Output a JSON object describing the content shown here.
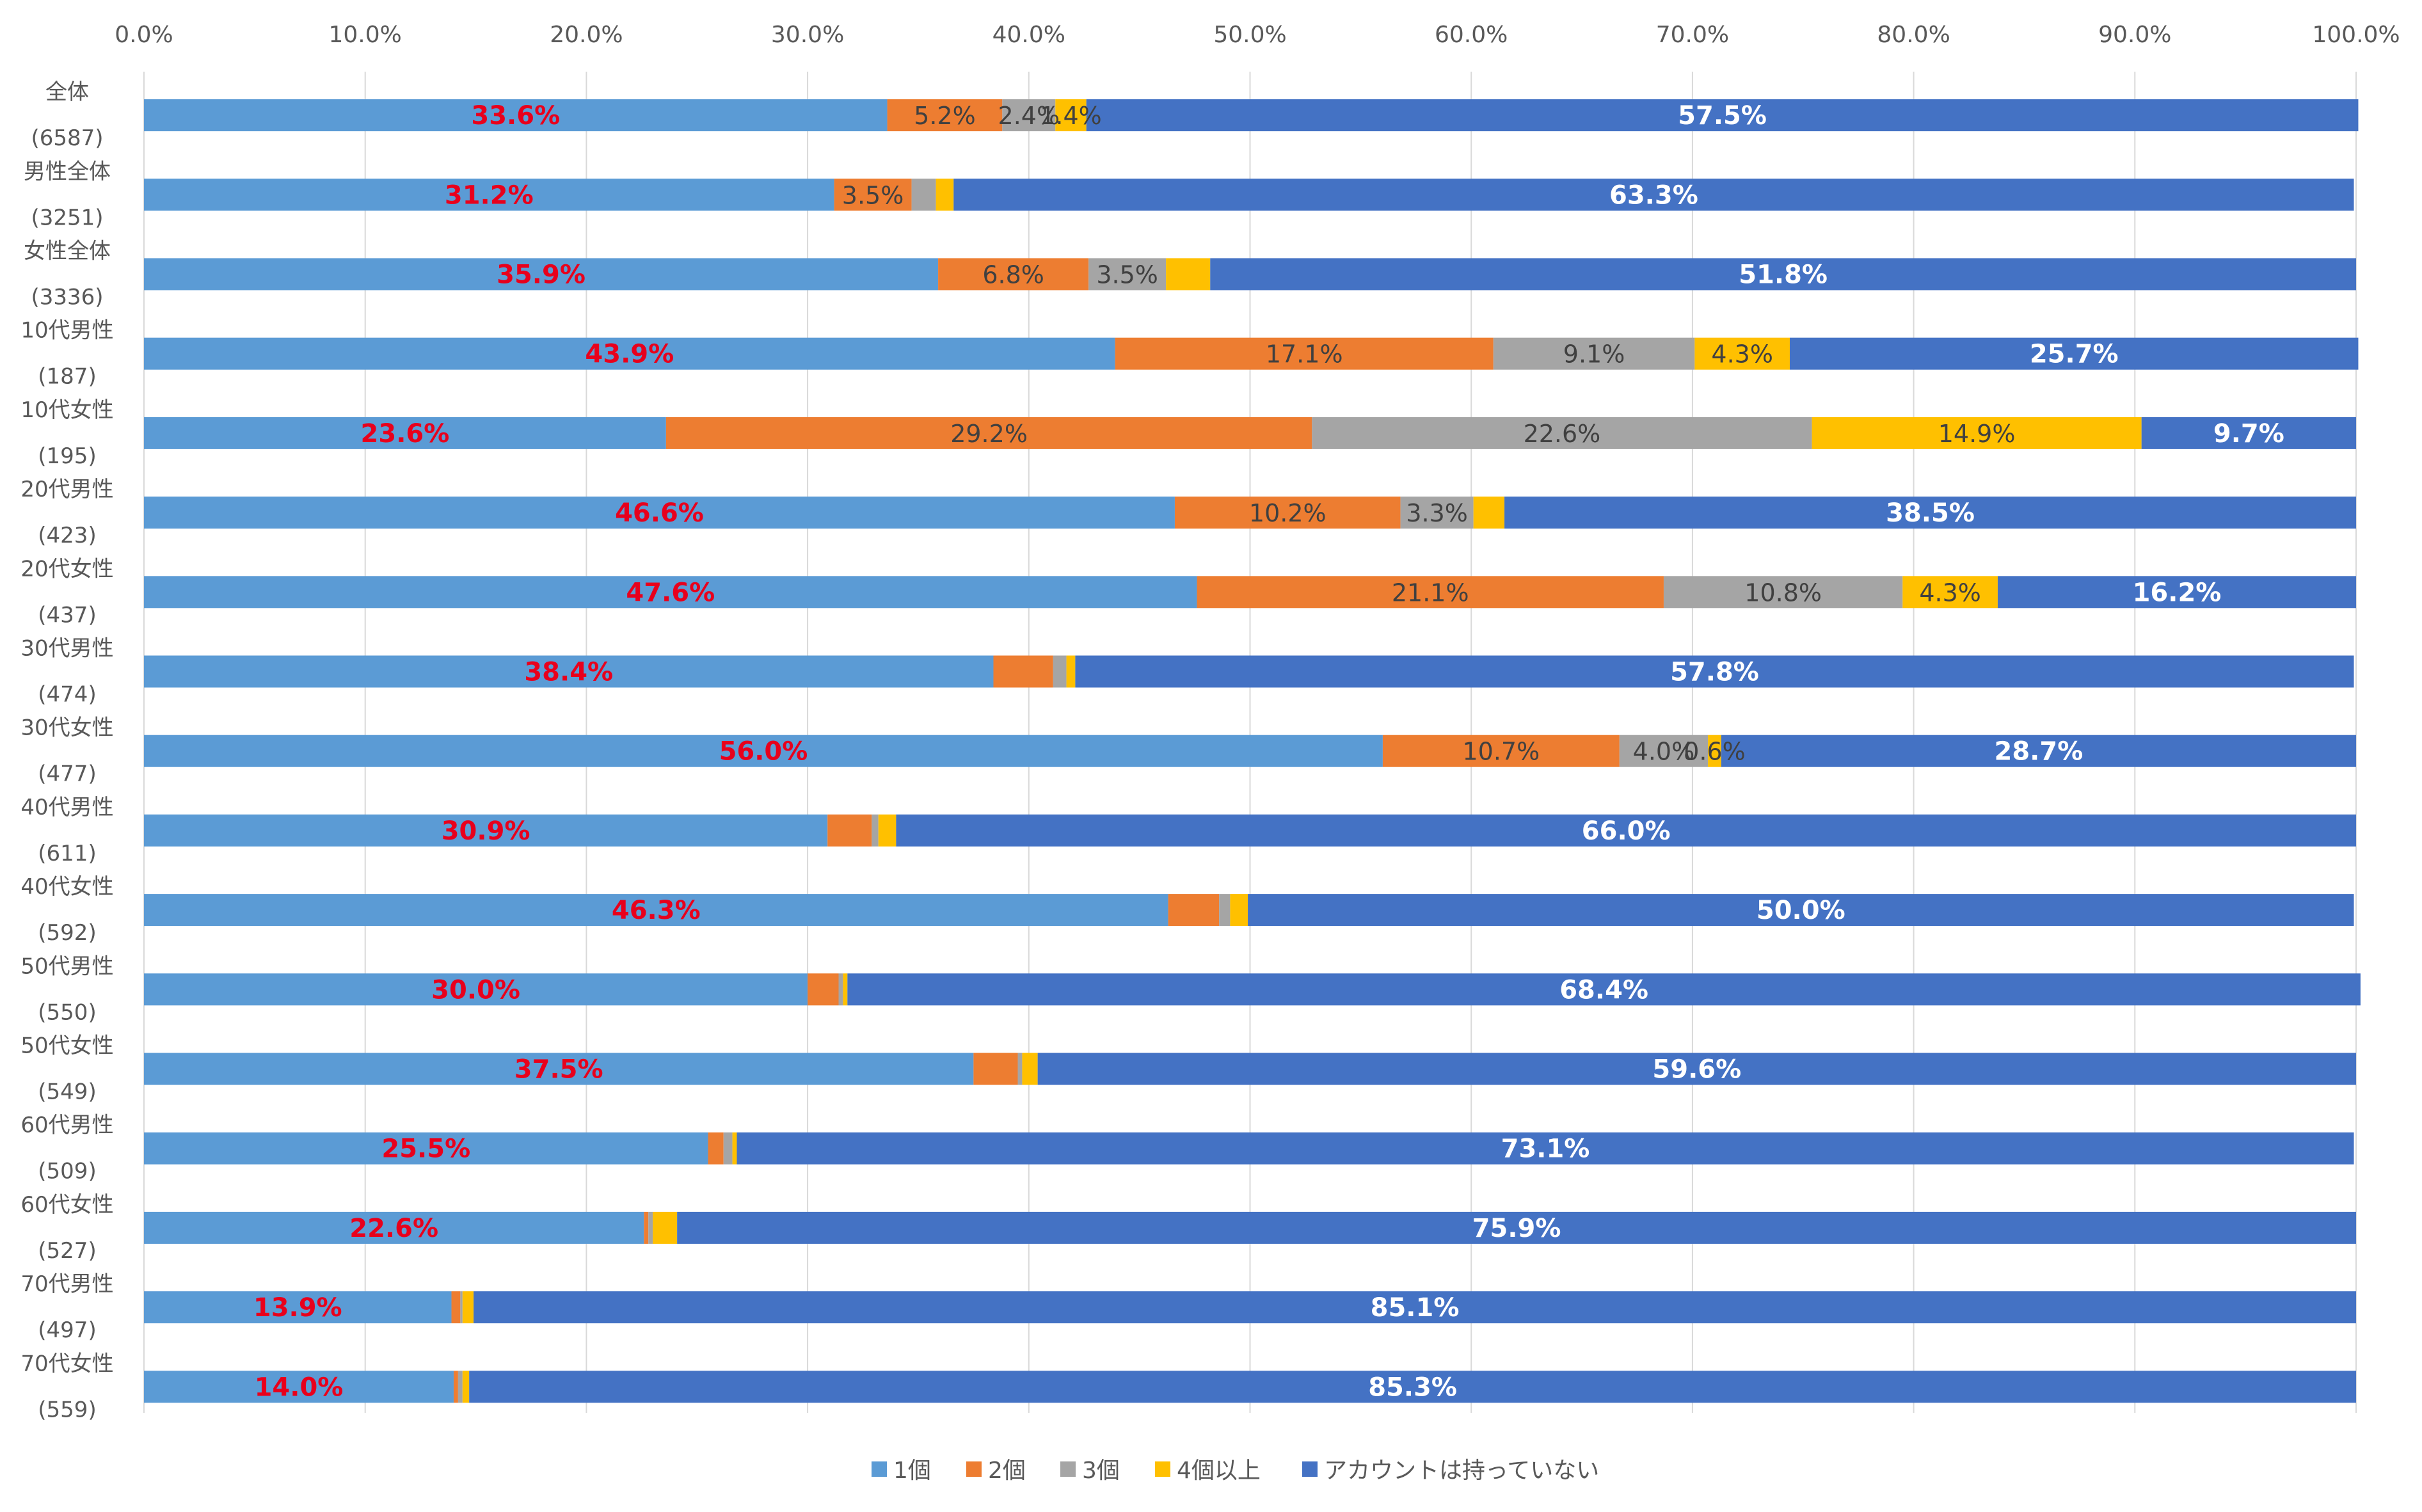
{
  "chart_data": {
    "type": "bar",
    "orientation": "horizontal",
    "stacked": "percent",
    "xlim": [
      0,
      100
    ],
    "x_ticks": [
      "0.0%",
      "10.0%",
      "20.0%",
      "30.0%",
      "40.0%",
      "50.0%",
      "60.0%",
      "70.0%",
      "80.0%",
      "90.0%",
      "100.0%"
    ],
    "grid": true,
    "legend_position": "bottom",
    "categories": [
      [
        "全体",
        "(6587)"
      ],
      [
        "男性全体",
        "(3251)"
      ],
      [
        "女性全体",
        "(3336)"
      ],
      [
        "10代男性",
        "(187)"
      ],
      [
        "10代女性",
        "(195)"
      ],
      [
        "20代男性",
        "(423)"
      ],
      [
        "20代女性",
        "(437)"
      ],
      [
        "30代男性",
        "(474)"
      ],
      [
        "30代女性",
        "(477)"
      ],
      [
        "40代男性",
        "(611)"
      ],
      [
        "40代女性",
        "(592)"
      ],
      [
        "50代男性",
        "(550)"
      ],
      [
        "50代女性",
        "(549)"
      ],
      [
        "60代男性",
        "(509)"
      ],
      [
        "60代女性",
        "(527)"
      ],
      [
        "70代男性",
        "(497)"
      ],
      [
        "70代女性",
        "(559)"
      ]
    ],
    "series": [
      {
        "name": "1個",
        "color": "#5b9bd5",
        "values": [
          33.6,
          31.2,
          35.9,
          43.9,
          23.6,
          46.6,
          47.6,
          38.4,
          56.0,
          30.9,
          46.3,
          30.0,
          37.5,
          25.5,
          22.6,
          13.9,
          14.0
        ],
        "labels": [
          "33.6%",
          "31.2%",
          "35.9%",
          "43.9%",
          "23.6%",
          "46.6%",
          "47.6%",
          "38.4%",
          "56.0%",
          "30.9%",
          "46.3%",
          "30.0%",
          "37.5%",
          "25.5%",
          "22.6%",
          "13.9%",
          "14.0%"
        ]
      },
      {
        "name": "2個",
        "color": "#ed7d31",
        "values": [
          5.2,
          3.5,
          6.8,
          17.1,
          29.2,
          10.2,
          21.1,
          2.7,
          10.7,
          2.0,
          2.3,
          1.4,
          2.0,
          0.7,
          0.2,
          0.4,
          0.2
        ],
        "labels": [
          "5.2%",
          "3.5%",
          "6.8%",
          "17.1%",
          "29.2%",
          "10.2%",
          "21.1%",
          "",
          "10.7%",
          "",
          "",
          "",
          "",
          "",
          "",
          "",
          ""
        ]
      },
      {
        "name": "3個",
        "color": "#a5a5a5",
        "values": [
          2.4,
          1.1,
          3.5,
          9.1,
          22.6,
          3.3,
          10.8,
          0.6,
          4.0,
          0.3,
          0.5,
          0.2,
          0.2,
          0.4,
          0.2,
          0.1,
          0.2
        ],
        "labels": [
          "2.4%",
          "",
          "3.5%",
          "9.1%",
          "22.6%",
          "3.3%",
          "10.8%",
          "",
          "4.0%",
          "",
          "",
          "",
          "",
          "",
          "",
          "",
          ""
        ]
      },
      {
        "name": "4個以上",
        "color": "#ffc000",
        "values": [
          1.4,
          0.8,
          2.0,
          4.3,
          14.9,
          1.4,
          4.3,
          0.4,
          0.6,
          0.8,
          0.8,
          0.2,
          0.7,
          0.2,
          1.1,
          0.5,
          0.3
        ],
        "labels": [
          "1.4%",
          "",
          "",
          "4.3%",
          "14.9%",
          "",
          "4.3%",
          "",
          "0.6%",
          "",
          "",
          "",
          "",
          "",
          "",
          "",
          ""
        ]
      },
      {
        "name": "アカウントは持っていない",
        "color": "#4472c4",
        "values": [
          57.5,
          63.3,
          51.8,
          25.7,
          9.7,
          38.5,
          16.2,
          57.8,
          28.7,
          66.0,
          50.0,
          68.4,
          59.6,
          73.1,
          75.9,
          85.1,
          85.3
        ],
        "labels": [
          "57.5%",
          "63.3%",
          "51.8%",
          "25.7%",
          "9.7%",
          "38.5%",
          "16.2%",
          "57.8%",
          "28.7%",
          "66.0%",
          "50.0%",
          "68.4%",
          "59.6%",
          "73.1%",
          "75.9%",
          "85.1%",
          "85.3%"
        ]
      }
    ]
  }
}
